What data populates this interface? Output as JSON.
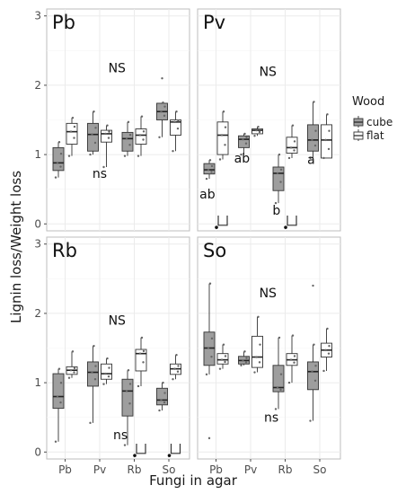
{
  "chart_data": {
    "type": "box",
    "xlabel": "Fungi in agar",
    "ylabel": "Lignin loss/Weight loss",
    "categories": [
      "Pb",
      "Pv",
      "Rb",
      "So"
    ],
    "yticks": [
      "0",
      "1",
      "2",
      "3"
    ],
    "ylim": [
      -0.1,
      3.1
    ],
    "legend": {
      "title": "Wood",
      "placement": "right",
      "entries": [
        {
          "name": "cube",
          "fill": "#9e9e9e"
        },
        {
          "name": "flat",
          "fill": "#ffffff"
        }
      ]
    },
    "panels": [
      {
        "title": "Pb",
        "annotations": [
          {
            "text": "NS",
            "x": 2.5,
            "y": 2.25
          },
          {
            "text": "ns",
            "x": 2.0,
            "y": 0.73
          }
        ],
        "boxes": [
          {
            "cat": "Pb",
            "group": "cube",
            "q1": 0.77,
            "median": 0.88,
            "q3": 1.1,
            "lo": 0.67,
            "hi": 1.18
          },
          {
            "cat": "Pb",
            "group": "flat",
            "q1": 1.15,
            "median": 1.33,
            "q3": 1.45,
            "lo": 0.98,
            "hi": 1.53
          },
          {
            "cat": "Pv",
            "group": "cube",
            "q1": 1.05,
            "median": 1.29,
            "q3": 1.45,
            "lo": 1.0,
            "hi": 1.62
          },
          {
            "cat": "Pv",
            "group": "flat",
            "q1": 1.18,
            "median": 1.3,
            "q3": 1.35,
            "lo": 0.82,
            "hi": 1.42
          },
          {
            "cat": "Rb",
            "group": "cube",
            "q1": 1.05,
            "median": 1.23,
            "q3": 1.32,
            "lo": 0.98,
            "hi": 1.47
          },
          {
            "cat": "Rb",
            "group": "flat",
            "q1": 1.15,
            "median": 1.28,
            "q3": 1.37,
            "lo": 0.98,
            "hi": 1.55
          },
          {
            "cat": "So",
            "group": "cube",
            "q1": 1.5,
            "median": 1.62,
            "q3": 1.74,
            "lo": 1.25,
            "hi": 1.75
          },
          {
            "cat": "So",
            "group": "flat",
            "q1": 1.28,
            "median": 1.47,
            "q3": 1.5,
            "lo": 1.05,
            "hi": 1.62
          }
        ],
        "outliers": [
          {
            "box": 6,
            "y": 2.1
          }
        ]
      },
      {
        "title": "Pv",
        "annotations": [
          {
            "text": "NS",
            "x": 2.5,
            "y": 2.2
          },
          {
            "text": "ab",
            "x": 0.75,
            "y": 0.43
          },
          {
            "text": "ab",
            "x": 1.75,
            "y": 0.95
          },
          {
            "text": "b",
            "x": 2.75,
            "y": 0.2
          },
          {
            "text": "a",
            "x": 3.75,
            "y": 0.93
          }
        ],
        "boxes": [
          {
            "cat": "Pb",
            "group": "cube",
            "q1": 0.72,
            "median": 0.78,
            "q3": 0.87,
            "lo": 0.65,
            "hi": 0.92
          },
          {
            "cat": "Pb",
            "group": "flat",
            "q1": 1.0,
            "median": 1.28,
            "q3": 1.47,
            "lo": 0.93,
            "hi": 1.62
          },
          {
            "cat": "Pv",
            "group": "cube",
            "q1": 1.1,
            "median": 1.22,
            "q3": 1.27,
            "lo": 1.0,
            "hi": 1.3
          },
          {
            "cat": "Pv",
            "group": "flat",
            "q1": 1.3,
            "median": 1.35,
            "q3": 1.37,
            "lo": 1.27,
            "hi": 1.4
          },
          {
            "cat": "Rb",
            "group": "cube",
            "q1": 0.48,
            "median": 0.73,
            "q3": 0.82,
            "lo": 0.3,
            "hi": 1.0
          },
          {
            "cat": "Rb",
            "group": "flat",
            "q1": 1.02,
            "median": 1.1,
            "q3": 1.25,
            "lo": 0.95,
            "hi": 1.42
          },
          {
            "cat": "So",
            "group": "cube",
            "q1": 1.05,
            "median": 1.21,
            "q3": 1.43,
            "lo": 0.95,
            "hi": 1.76
          },
          {
            "cat": "So",
            "group": "flat",
            "q1": 0.95,
            "median": 1.21,
            "q3": 1.43,
            "lo": 0.95,
            "hi": 1.58
          }
        ],
        "outliers": [],
        "extras": [
          {
            "x": 1.0,
            "dot": -0.05
          },
          {
            "x": 3.0,
            "dot": -0.05
          }
        ]
      },
      {
        "title": "Rb",
        "annotations": [
          {
            "text": "NS",
            "x": 2.5,
            "y": 1.9
          },
          {
            "text": "ns",
            "x": 2.6,
            "y": 0.25
          }
        ],
        "boxes": [
          {
            "cat": "Pb",
            "group": "cube",
            "q1": 0.63,
            "median": 0.8,
            "q3": 1.13,
            "lo": 0.15,
            "hi": 1.2
          },
          {
            "cat": "Pb",
            "group": "flat",
            "q1": 1.12,
            "median": 1.18,
            "q3": 1.23,
            "lo": 1.07,
            "hi": 1.45
          },
          {
            "cat": "Pv",
            "group": "cube",
            "q1": 0.95,
            "median": 1.15,
            "q3": 1.3,
            "lo": 0.42,
            "hi": 1.53
          },
          {
            "cat": "Pv",
            "group": "flat",
            "q1": 1.05,
            "median": 1.13,
            "q3": 1.27,
            "lo": 0.98,
            "hi": 1.35
          },
          {
            "cat": "Rb",
            "group": "cube",
            "q1": 0.52,
            "median": 0.88,
            "q3": 1.05,
            "lo": 0.1,
            "hi": 1.18
          },
          {
            "cat": "Rb",
            "group": "flat",
            "q1": 1.17,
            "median": 1.42,
            "q3": 1.48,
            "lo": 0.95,
            "hi": 1.65
          },
          {
            "cat": "So",
            "group": "cube",
            "q1": 0.68,
            "median": 0.75,
            "q3": 0.92,
            "lo": 0.6,
            "hi": 1.0
          },
          {
            "cat": "So",
            "group": "flat",
            "q1": 1.12,
            "median": 1.2,
            "q3": 1.27,
            "lo": 1.05,
            "hi": 1.4
          }
        ],
        "outliers": [],
        "extras": [
          {
            "x": 3.0,
            "dot": -0.05
          },
          {
            "x": 4.0,
            "dot": -0.05
          }
        ]
      },
      {
        "title": "So",
        "annotations": [
          {
            "text": "NS",
            "x": 2.5,
            "y": 2.3
          },
          {
            "text": "ns",
            "x": 2.6,
            "y": 0.5
          }
        ],
        "boxes": [
          {
            "cat": "Pb",
            "group": "cube",
            "q1": 1.25,
            "median": 1.5,
            "q3": 1.73,
            "lo": 1.12,
            "hi": 2.43
          },
          {
            "cat": "Pb",
            "group": "flat",
            "q1": 1.27,
            "median": 1.33,
            "q3": 1.42,
            "lo": 1.2,
            "hi": 1.55
          },
          {
            "cat": "Pv",
            "group": "cube",
            "q1": 1.27,
            "median": 1.32,
            "q3": 1.38,
            "lo": 1.25,
            "hi": 1.45
          },
          {
            "cat": "Pv",
            "group": "flat",
            "q1": 1.22,
            "median": 1.37,
            "q3": 1.67,
            "lo": 1.15,
            "hi": 1.95
          },
          {
            "cat": "Rb",
            "group": "cube",
            "q1": 0.87,
            "median": 0.93,
            "q3": 1.25,
            "lo": 0.62,
            "hi": 1.65
          },
          {
            "cat": "Rb",
            "group": "flat",
            "q1": 1.25,
            "median": 1.33,
            "q3": 1.42,
            "lo": 1.0,
            "hi": 1.68
          },
          {
            "cat": "So",
            "group": "cube",
            "q1": 0.9,
            "median": 1.16,
            "q3": 1.3,
            "lo": 0.45,
            "hi": 1.55
          },
          {
            "cat": "So",
            "group": "flat",
            "q1": 1.37,
            "median": 1.47,
            "q3": 1.57,
            "lo": 1.17,
            "hi": 1.78
          }
        ],
        "outliers": [
          {
            "box": 0,
            "y": 0.2
          },
          {
            "box": 6,
            "y": 2.4
          }
        ]
      }
    ]
  }
}
